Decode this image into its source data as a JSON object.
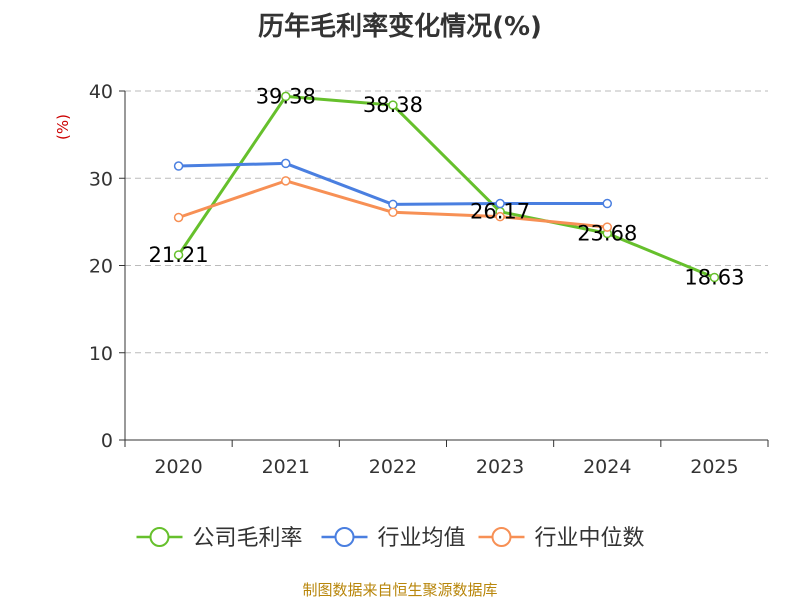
{
  "chart_data": {
    "type": "line",
    "title": "历年毛利率变化情况(%)",
    "ylabel": "(%)",
    "xlabel": "",
    "categories": [
      "2020",
      "2021",
      "2022",
      "2023",
      "2024",
      "2025"
    ],
    "ylim": [
      0,
      40
    ],
    "yticks": [
      0,
      10,
      20,
      30,
      40
    ],
    "grid": true,
    "legend_position": "bottom",
    "series": [
      {
        "name": "公司毛利率",
        "color": "#66c02c",
        "values": [
          21.21,
          39.38,
          38.38,
          26.17,
          23.68,
          18.63
        ],
        "labels": [
          "21.21",
          "39.38",
          "38.38",
          "26.17",
          "23.68",
          "18.63"
        ]
      },
      {
        "name": "行业均值",
        "color": "#4a7fe0",
        "values": [
          31.4,
          31.7,
          27.0,
          27.1,
          27.1,
          null
        ]
      },
      {
        "name": "行业中位数",
        "color": "#f79055",
        "values": [
          25.5,
          29.7,
          26.1,
          25.6,
          24.4,
          null
        ]
      }
    ]
  },
  "source": "制图数据来自恒生聚源数据库"
}
